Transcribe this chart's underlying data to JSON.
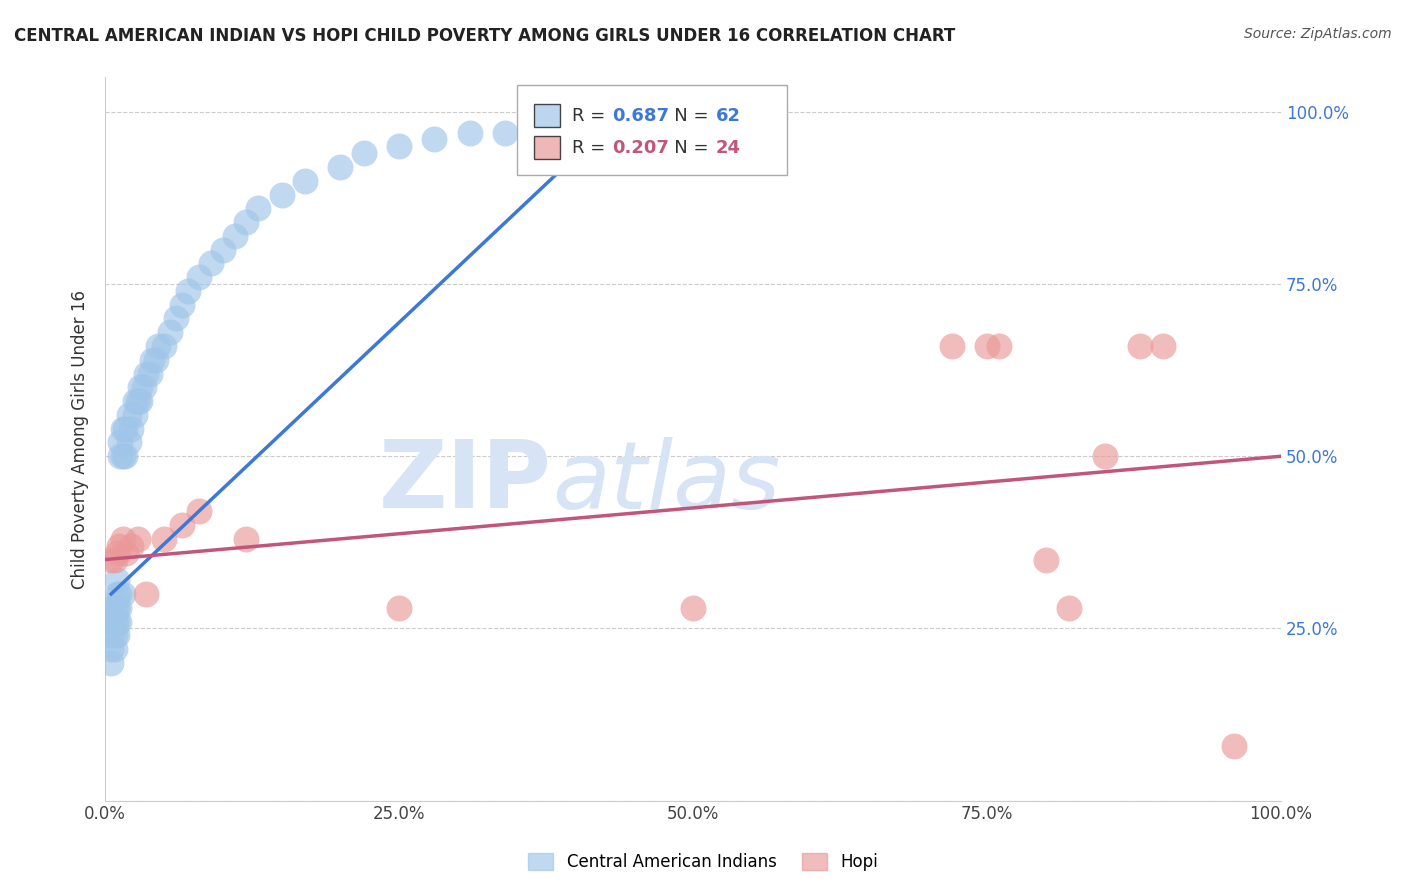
{
  "title": "CENTRAL AMERICAN INDIAN VS HOPI CHILD POVERTY AMONG GIRLS UNDER 16 CORRELATION CHART",
  "source": "Source: ZipAtlas.com",
  "ylabel": "Child Poverty Among Girls Under 16",
  "legend_label1": "Central American Indians",
  "legend_label2": "Hopi",
  "r1": 0.687,
  "n1": 62,
  "r2": 0.207,
  "n2": 24,
  "blue_color": "#9fc5e8",
  "pink_color": "#ea9999",
  "line_blue": "#3c78d8",
  "line_pink": "#c2567a",
  "watermark_color": "#d6e4f5",
  "blue_x": [
    0.005,
    0.005,
    0.005,
    0.005,
    0.005,
    0.008,
    0.008,
    0.008,
    0.008,
    0.01,
    0.01,
    0.01,
    0.01,
    0.01,
    0.012,
    0.012,
    0.012,
    0.013,
    0.013,
    0.015,
    0.015,
    0.015,
    0.017,
    0.017,
    0.02,
    0.02,
    0.022,
    0.025,
    0.025,
    0.028,
    0.03,
    0.03,
    0.033,
    0.035,
    0.038,
    0.04,
    0.043,
    0.045,
    0.05,
    0.055,
    0.06,
    0.065,
    0.07,
    0.08,
    0.09,
    0.1,
    0.11,
    0.12,
    0.13,
    0.15,
    0.17,
    0.2,
    0.22,
    0.25,
    0.28,
    0.31,
    0.34,
    0.37,
    0.4,
    0.43,
    0.46,
    0.5
  ],
  "blue_y": [
    0.2,
    0.22,
    0.24,
    0.26,
    0.28,
    0.22,
    0.24,
    0.26,
    0.28,
    0.24,
    0.26,
    0.28,
    0.3,
    0.32,
    0.26,
    0.28,
    0.3,
    0.5,
    0.52,
    0.3,
    0.5,
    0.54,
    0.5,
    0.54,
    0.52,
    0.56,
    0.54,
    0.56,
    0.58,
    0.58,
    0.58,
    0.6,
    0.6,
    0.62,
    0.62,
    0.64,
    0.64,
    0.66,
    0.66,
    0.68,
    0.7,
    0.72,
    0.74,
    0.76,
    0.78,
    0.8,
    0.82,
    0.84,
    0.86,
    0.88,
    0.9,
    0.92,
    0.94,
    0.95,
    0.96,
    0.97,
    0.97,
    0.98,
    0.98,
    0.99,
    0.99,
    1.0
  ],
  "pink_x": [
    0.005,
    0.008,
    0.01,
    0.012,
    0.015,
    0.018,
    0.022,
    0.028,
    0.035,
    0.05,
    0.065,
    0.08,
    0.12,
    0.25,
    0.5,
    0.72,
    0.75,
    0.76,
    0.8,
    0.82,
    0.85,
    0.88,
    0.9,
    0.96
  ],
  "pink_y": [
    0.35,
    0.35,
    0.36,
    0.37,
    0.38,
    0.36,
    0.37,
    0.38,
    0.3,
    0.38,
    0.4,
    0.42,
    0.38,
    0.28,
    0.28,
    0.66,
    0.66,
    0.66,
    0.35,
    0.28,
    0.5,
    0.66,
    0.66,
    0.08
  ],
  "blue_line_x": [
    0.005,
    0.44
  ],
  "blue_line_y": [
    0.3,
    1.0
  ],
  "pink_line_x": [
    0.0,
    1.0
  ],
  "pink_line_y": [
    0.35,
    0.5
  ],
  "xlim": [
    0.0,
    1.0
  ],
  "ylim": [
    0.0,
    1.05
  ],
  "xticks": [
    0.0,
    0.25,
    0.5,
    0.75,
    1.0
  ],
  "xtick_labels": [
    "0.0%",
    "25.0%",
    "50.0%",
    "75.0%",
    "100.0%"
  ],
  "yticks": [
    0.0,
    0.25,
    0.5,
    0.75,
    1.0
  ],
  "ytick_labels_right": [
    "",
    "25.0%",
    "50.0%",
    "75.0%",
    "100.0%"
  ]
}
